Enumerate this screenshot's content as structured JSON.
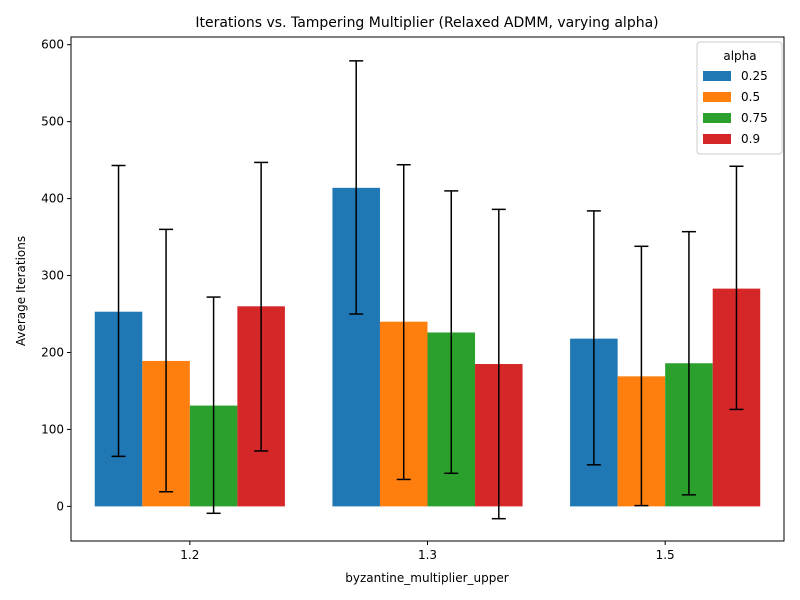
{
  "chart_data": {
    "type": "bar",
    "title": "Iterations vs. Tampering Multiplier (Relaxed ADMM, varying alpha)",
    "xlabel": "byzantine_multiplier_upper",
    "ylabel": "Average Iterations",
    "categories": [
      "1.2",
      "1.3",
      "1.5"
    ],
    "ylim": [
      -45,
      610
    ],
    "yticks": [
      0,
      100,
      200,
      300,
      400,
      500,
      600
    ],
    "grid": false,
    "legend": {
      "title": "alpha",
      "placement": "top-right"
    },
    "series": [
      {
        "name": "0.25",
        "color": "#1f77b4",
        "values": [
          253,
          414,
          218
        ],
        "err_low": [
          65,
          250,
          54
        ],
        "err_high": [
          443,
          579,
          384
        ]
      },
      {
        "name": "0.5",
        "color": "#ff7f0e",
        "values": [
          189,
          240,
          169
        ],
        "err_low": [
          19,
          35,
          1
        ],
        "err_high": [
          360,
          444,
          338
        ]
      },
      {
        "name": "0.75",
        "color": "#2ca02c",
        "values": [
          131,
          226,
          186
        ],
        "err_low": [
          -9,
          43,
          15
        ],
        "err_high": [
          272,
          410,
          357
        ]
      },
      {
        "name": "0.9",
        "color": "#d62728",
        "values": [
          260,
          185,
          283
        ],
        "err_low": [
          72,
          -16,
          126
        ],
        "err_high": [
          447,
          386,
          442
        ]
      }
    ]
  }
}
